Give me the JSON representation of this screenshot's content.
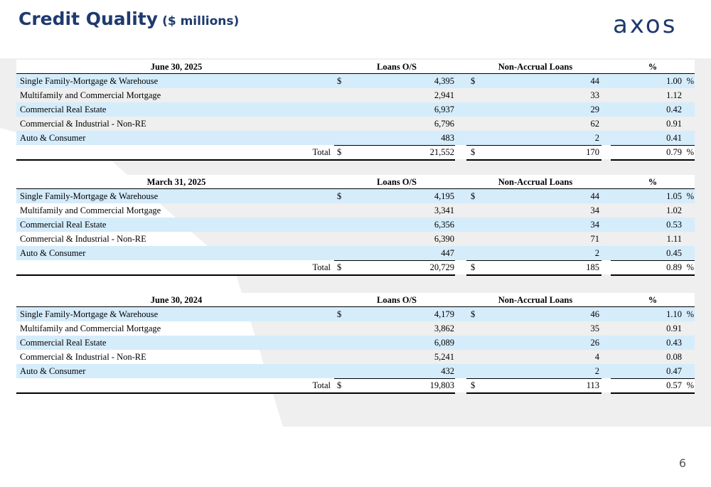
{
  "title": "Credit Quality",
  "subtitle": "($ millions)",
  "logo_text": "axos",
  "page_number": "6",
  "colors": {
    "title": "#1f3a6e",
    "shade": "#d5ecfb",
    "logo_dark": "#1f3a6e",
    "logo_accent": "#f4a261"
  },
  "columns": {
    "loans": "Loans O/S",
    "nonaccrual": "Non-Accrual Loans",
    "pct": "%"
  },
  "currency": "$",
  "percent_sign": "%",
  "total_label": "Total",
  "tables": [
    {
      "period": "June 30, 2025",
      "rows": [
        {
          "label": "Single Family-Mortgage & Warehouse",
          "loans": "4,395",
          "nonaccrual": "44",
          "pct": "1.00"
        },
        {
          "label": "Multifamily and Commercial Mortgage",
          "loans": "2,941",
          "nonaccrual": "33",
          "pct": "1.12"
        },
        {
          "label": "Commercial Real Estate",
          "loans": "6,937",
          "nonaccrual": "29",
          "pct": "0.42"
        },
        {
          "label": "Commercial & Industrial - Non-RE",
          "loans": "6,796",
          "nonaccrual": "62",
          "pct": "0.91"
        },
        {
          "label": "Auto & Consumer",
          "loans": "483",
          "nonaccrual": "2",
          "pct": "0.41"
        }
      ],
      "total": {
        "loans": "21,552",
        "nonaccrual": "170",
        "pct": "0.79"
      }
    },
    {
      "period": "March 31, 2025",
      "rows": [
        {
          "label": "Single Family-Mortgage & Warehouse",
          "loans": "4,195",
          "nonaccrual": "44",
          "pct": "1.05"
        },
        {
          "label": "Multifamily and Commercial Mortgage",
          "loans": "3,341",
          "nonaccrual": "34",
          "pct": "1.02"
        },
        {
          "label": "Commercial Real Estate",
          "loans": "6,356",
          "nonaccrual": "34",
          "pct": "0.53"
        },
        {
          "label": "Commercial & Industrial - Non-RE",
          "loans": "6,390",
          "nonaccrual": "71",
          "pct": "1.11"
        },
        {
          "label": "Auto & Consumer",
          "loans": "447",
          "nonaccrual": "2",
          "pct": "0.45"
        }
      ],
      "total": {
        "loans": "20,729",
        "nonaccrual": "185",
        "pct": "0.89"
      }
    },
    {
      "period": "June 30, 2024",
      "rows": [
        {
          "label": "Single Family-Mortgage & Warehouse",
          "loans": "4,179",
          "nonaccrual": "46",
          "pct": "1.10"
        },
        {
          "label": "Multifamily and Commercial Mortgage",
          "loans": "3,862",
          "nonaccrual": "35",
          "pct": "0.91"
        },
        {
          "label": "Commercial Real Estate",
          "loans": "6,089",
          "nonaccrual": "26",
          "pct": "0.43"
        },
        {
          "label": "Commercial & Industrial - Non-RE",
          "loans": "5,241",
          "nonaccrual": "4",
          "pct": "0.08"
        },
        {
          "label": "Auto & Consumer",
          "loans": "432",
          "nonaccrual": "2",
          "pct": "0.47"
        }
      ],
      "total": {
        "loans": "19,803",
        "nonaccrual": "113",
        "pct": "0.57"
      }
    }
  ]
}
